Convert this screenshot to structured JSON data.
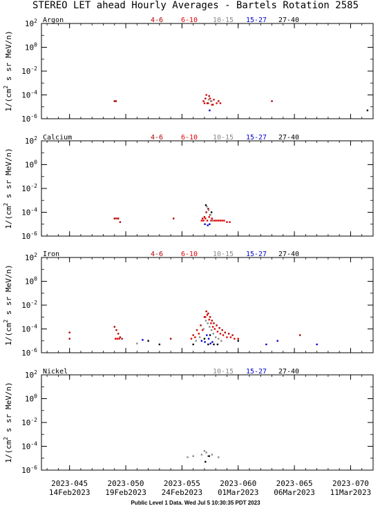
{
  "chart_data": {
    "type": "scatter",
    "title": "STEREO LET ahead Hourly Averages - Bartels Rotation 2585",
    "ylabel_parts": [
      "1/(cm",
      "2",
      " s sr MeV/n)"
    ],
    "footer": "Public Level 1 Data. Wed Jul  5 10:30:35 PDT 2023",
    "y_scale": "log",
    "ylim": [
      1e-06,
      100
    ],
    "xlim": [
      "2023-02-11T12:00",
      "2023-03-13T00:00"
    ],
    "y_ticks": [
      {
        "value": 100,
        "base": "10",
        "exp": "2"
      },
      {
        "value": 1,
        "base": "10",
        "exp": "0"
      },
      {
        "value": 0.01,
        "base": "10",
        "exp": "-2"
      },
      {
        "value": 0.0001,
        "base": "10",
        "exp": "-4"
      },
      {
        "value": 1e-06,
        "base": "10",
        "exp": "-6"
      }
    ],
    "x_ticks": [
      {
        "date": "2023-02-14",
        "doy": "2023-045",
        "label": "14Feb2023"
      },
      {
        "date": "2023-02-19",
        "doy": "2023-050",
        "label": "19Feb2023"
      },
      {
        "date": "2023-02-24",
        "doy": "2023-055",
        "label": "24Feb2023"
      },
      {
        "date": "2023-03-01",
        "doy": "2023-060",
        "label": "01Mar2023"
      },
      {
        "date": "2023-03-06",
        "doy": "2023-065",
        "label": "06Mar2023"
      },
      {
        "date": "2023-03-11",
        "doy": "2023-070",
        "label": "11Mar2023"
      }
    ],
    "energy_bins": [
      {
        "label": "4-6",
        "color": "#b00000"
      },
      {
        "label": "6-10",
        "color": "#e00000"
      },
      {
        "label": "10-15",
        "color": "#888888"
      },
      {
        "label": "15-27",
        "color": "#0000cc"
      },
      {
        "label": "27-40",
        "color": "#000000"
      }
    ],
    "panels": [
      {
        "element": "Argon",
        "legend": [
          "4-6",
          "6-10",
          "10-15",
          "15-27",
          "27-40"
        ],
        "series": [
          {
            "name": "4-6",
            "points": [
              [
                "2023-02-18T00:00",
                3e-05
              ],
              [
                "2023-02-18T03:00",
                3e-05
              ],
              [
                "2023-02-25T22:00",
                3e-05
              ],
              [
                "2023-02-26T02:00",
                5e-05
              ],
              [
                "2023-02-26T06:00",
                2e-05
              ],
              [
                "2023-02-26T10:00",
                8e-05
              ],
              [
                "2023-02-26T14:00",
                3e-05
              ],
              [
                "2023-02-26T18:00",
                1.5e-05
              ],
              [
                "2023-02-27T06:00",
                3e-05
              ],
              [
                "2023-03-04T00:00",
                3e-05
              ]
            ]
          },
          {
            "name": "6-10",
            "points": [
              [
                "2023-02-26T00:00",
                2e-05
              ],
              [
                "2023-02-26T04:00",
                0.0001
              ],
              [
                "2023-02-26T08:00",
                2e-05
              ],
              [
                "2023-02-26T12:00",
                5e-05
              ],
              [
                "2023-02-26T16:00",
                1.5e-05
              ],
              [
                "2023-02-26T20:00",
                4e-05
              ],
              [
                "2023-02-27T02:00",
                2e-05
              ],
              [
                "2023-02-27T10:00",
                2e-05
              ]
            ]
          },
          {
            "name": "10-15",
            "points": [
              [
                "2023-02-26T09:00",
                4e-05
              ],
              [
                "2023-02-26T15:00",
                3e-05
              ]
            ]
          },
          {
            "name": "15-27",
            "points": [
              [
                "2023-02-26T11:00",
                5e-06
              ]
            ]
          },
          {
            "name": "27-40",
            "points": [
              [
                "2023-03-12T12:00",
                5e-06
              ]
            ]
          }
        ]
      },
      {
        "element": "Calcium",
        "legend": [
          "4-6",
          "6-10",
          "10-15",
          "15-27",
          "27-40"
        ],
        "series": [
          {
            "name": "4-6",
            "points": [
              [
                "2023-02-18T00:00",
                3e-05
              ],
              [
                "2023-02-18T04:00",
                3e-05
              ],
              [
                "2023-02-18T08:00",
                3e-05
              ],
              [
                "2023-02-18T12:00",
                1.5e-05
              ],
              [
                "2023-02-23T06:00",
                3e-05
              ],
              [
                "2023-02-25T20:00",
                3e-05
              ],
              [
                "2023-02-26T00:00",
                4e-05
              ],
              [
                "2023-02-26T04:00",
                0.0001
              ],
              [
                "2023-02-26T08:00",
                0.0002
              ],
              [
                "2023-02-26T12:00",
                6e-05
              ],
              [
                "2023-02-26T16:00",
                3e-05
              ]
            ]
          },
          {
            "name": "6-10",
            "points": [
              [
                "2023-02-25T18:00",
                2e-05
              ],
              [
                "2023-02-25T22:00",
                2e-05
              ],
              [
                "2023-02-26T02:00",
                3e-05
              ],
              [
                "2023-02-26T06:00",
                2e-05
              ],
              [
                "2023-02-26T10:00",
                4e-05
              ],
              [
                "2023-02-26T14:00",
                2e-05
              ],
              [
                "2023-02-26T18:00",
                2e-05
              ],
              [
                "2023-02-26T22:00",
                2e-05
              ],
              [
                "2023-02-27T02:00",
                2e-05
              ],
              [
                "2023-02-27T06:00",
                2e-05
              ],
              [
                "2023-02-27T10:00",
                2e-05
              ],
              [
                "2023-02-27T14:00",
                2e-05
              ],
              [
                "2023-02-27T18:00",
                2e-05
              ],
              [
                "2023-02-28T00:00",
                1.5e-05
              ],
              [
                "2023-02-28T06:00",
                1.5e-05
              ]
            ]
          },
          {
            "name": "10-15",
            "points": [
              [
                "2023-02-26T05:00",
                0.0003
              ],
              [
                "2023-02-26T09:00",
                0.00015
              ],
              [
                "2023-02-26T13:00",
                6e-05
              ],
              [
                "2023-02-26T17:00",
                2e-05
              ]
            ]
          },
          {
            "name": "15-27",
            "points": [
              [
                "2023-02-26T01:00",
                1e-05
              ],
              [
                "2023-02-26T07:00",
                8e-06
              ],
              [
                "2023-02-26T11:00",
                1e-05
              ]
            ]
          },
          {
            "name": "27-40",
            "points": [
              [
                "2023-02-26T03:00",
                0.0004
              ],
              [
                "2023-02-26T15:00",
                0.0001
              ]
            ]
          }
        ]
      },
      {
        "element": "Iron",
        "legend": [
          "4-6",
          "6-10",
          "10-15",
          "15-27",
          "27-40"
        ],
        "series": [
          {
            "name": "4-6",
            "points": [
              [
                "2023-02-14T00:00",
                5e-05
              ],
              [
                "2023-02-14T00:00",
                1.5e-05
              ],
              [
                "2023-02-18T00:00",
                0.00015
              ],
              [
                "2023-02-18T04:00",
                8e-05
              ],
              [
                "2023-02-18T08:00",
                4e-05
              ],
              [
                "2023-02-18T12:00",
                2e-05
              ],
              [
                "2023-02-18T16:00",
                1.5e-05
              ],
              [
                "2023-02-23T00:00",
                1.5e-05
              ],
              [
                "2023-02-25T00:00",
                3e-05
              ],
              [
                "2023-02-25T08:00",
                8e-05
              ],
              [
                "2023-02-25T16:00",
                0.0002
              ],
              [
                "2023-02-26T00:00",
                0.001
              ],
              [
                "2023-02-26T04:00",
                0.003
              ],
              [
                "2023-02-26T08:00",
                0.002
              ],
              [
                "2023-02-26T12:00",
                0.001
              ],
              [
                "2023-02-26T16:00",
                0.0005
              ],
              [
                "2023-02-26T20:00",
                0.0003
              ],
              [
                "2023-02-27T02:00",
                0.0002
              ],
              [
                "2023-02-27T08:00",
                0.00012
              ],
              [
                "2023-02-27T14:00",
                8e-05
              ],
              [
                "2023-02-27T20:00",
                5e-05
              ],
              [
                "2023-02-28T04:00",
                4e-05
              ],
              [
                "2023-02-28T12:00",
                3e-05
              ],
              [
                "2023-03-06T12:00",
                3e-05
              ]
            ]
          },
          {
            "name": "6-10",
            "points": [
              [
                "2023-02-18T02:00",
                1.5e-05
              ],
              [
                "2023-02-18T06:00",
                1.5e-05
              ],
              [
                "2023-02-18T10:00",
                1.5e-05
              ],
              [
                "2023-02-24T20:00",
                1.5e-05
              ],
              [
                "2023-02-25T04:00",
                2e-05
              ],
              [
                "2023-02-25T12:00",
                4e-05
              ],
              [
                "2023-02-25T20:00",
                8e-05
              ],
              [
                "2023-02-26T02:00",
                0.001
              ],
              [
                "2023-02-26T06:00",
                0.0015
              ],
              [
                "2023-02-26T10:00",
                0.0006
              ],
              [
                "2023-02-26T14:00",
                0.0003
              ],
              [
                "2023-02-26T18:00",
                0.00015
              ],
              [
                "2023-02-26T22:00",
                0.0001
              ],
              [
                "2023-02-27T04:00",
                6e-05
              ],
              [
                "2023-02-27T10:00",
                4e-05
              ],
              [
                "2023-02-27T16:00",
                3e-05
              ],
              [
                "2023-02-28T00:00",
                2e-05
              ],
              [
                "2023-02-28T08:00",
                2e-05
              ],
              [
                "2023-02-28T16:00",
                1.5e-05
              ],
              [
                "2023-03-01T00:00",
                1.5e-05
              ]
            ]
          },
          {
            "name": "10-15",
            "points": [
              [
                "2023-02-25T06:00",
                1e-05
              ],
              [
                "2023-02-25T14:00",
                2e-05
              ],
              [
                "2023-02-25T22:00",
                0.0001
              ],
              [
                "2023-02-26T03:00",
                0.0005
              ],
              [
                "2023-02-26T07:00",
                0.0003
              ],
              [
                "2023-02-26T11:00",
                0.00015
              ],
              [
                "2023-02-26T15:00",
                8e-05
              ],
              [
                "2023-02-26T19:00",
                4e-05
              ],
              [
                "2023-02-27T00:00",
                2e-05
              ],
              [
                "2023-02-27T06:00",
                1.5e-05
              ],
              [
                "2023-02-27T12:00",
                1e-05
              ],
              [
                "2023-02-20T00:00",
                6e-06
              ]
            ]
          },
          {
            "name": "15-27",
            "points": [
              [
                "2023-02-20T12:00",
                1.2e-05
              ],
              [
                "2023-02-25T18:00",
                1e-05
              ],
              [
                "2023-02-26T01:00",
                8e-06
              ],
              [
                "2023-02-26T05:00",
                3e-05
              ],
              [
                "2023-02-26T09:00",
                1.5e-05
              ],
              [
                "2023-02-26T13:00",
                6e-06
              ],
              [
                "2023-02-26T17:00",
                8e-06
              ],
              [
                "2023-03-03T12:00",
                5e-06
              ],
              [
                "2023-03-04T12:00",
                1e-05
              ],
              [
                "2023-03-08T00:00",
                5e-06
              ]
            ]
          },
          {
            "name": "27-40",
            "points": [
              [
                "2023-02-21T00:00",
                1e-05
              ],
              [
                "2023-02-22T00:00",
                5e-06
              ],
              [
                "2023-02-25T00:00",
                5e-06
              ],
              [
                "2023-02-26T00:00",
                1.5e-05
              ],
              [
                "2023-02-26T08:00",
                5e-06
              ],
              [
                "2023-02-26T12:00",
                3e-05
              ],
              [
                "2023-02-26T20:00",
                5e-06
              ],
              [
                "2023-02-27T04:00",
                5e-06
              ],
              [
                "2023-03-01T00:00",
                1e-05
              ]
            ]
          }
        ]
      },
      {
        "element": "Nickel",
        "legend": [
          "10-15",
          "15-27",
          "27-40"
        ],
        "series": [
          {
            "name": "10-15",
            "points": [
              [
                "2023-02-24T12:00",
                1.2e-05
              ],
              [
                "2023-02-25T00:00",
                1.5e-05
              ],
              [
                "2023-02-25T18:00",
                2e-05
              ],
              [
                "2023-02-26T00:00",
                4e-05
              ],
              [
                "2023-02-26T04:00",
                3e-05
              ],
              [
                "2023-02-26T08:00",
                1.5e-05
              ],
              [
                "2023-02-26T16:00",
                2e-05
              ],
              [
                "2023-02-27T06:00",
                1.2e-05
              ]
            ]
          },
          {
            "name": "27-40",
            "points": [
              [
                "2023-02-26T02:00",
                5e-06
              ],
              [
                "2023-02-26T10:00",
                1.5e-05
              ]
            ]
          }
        ]
      }
    ]
  }
}
